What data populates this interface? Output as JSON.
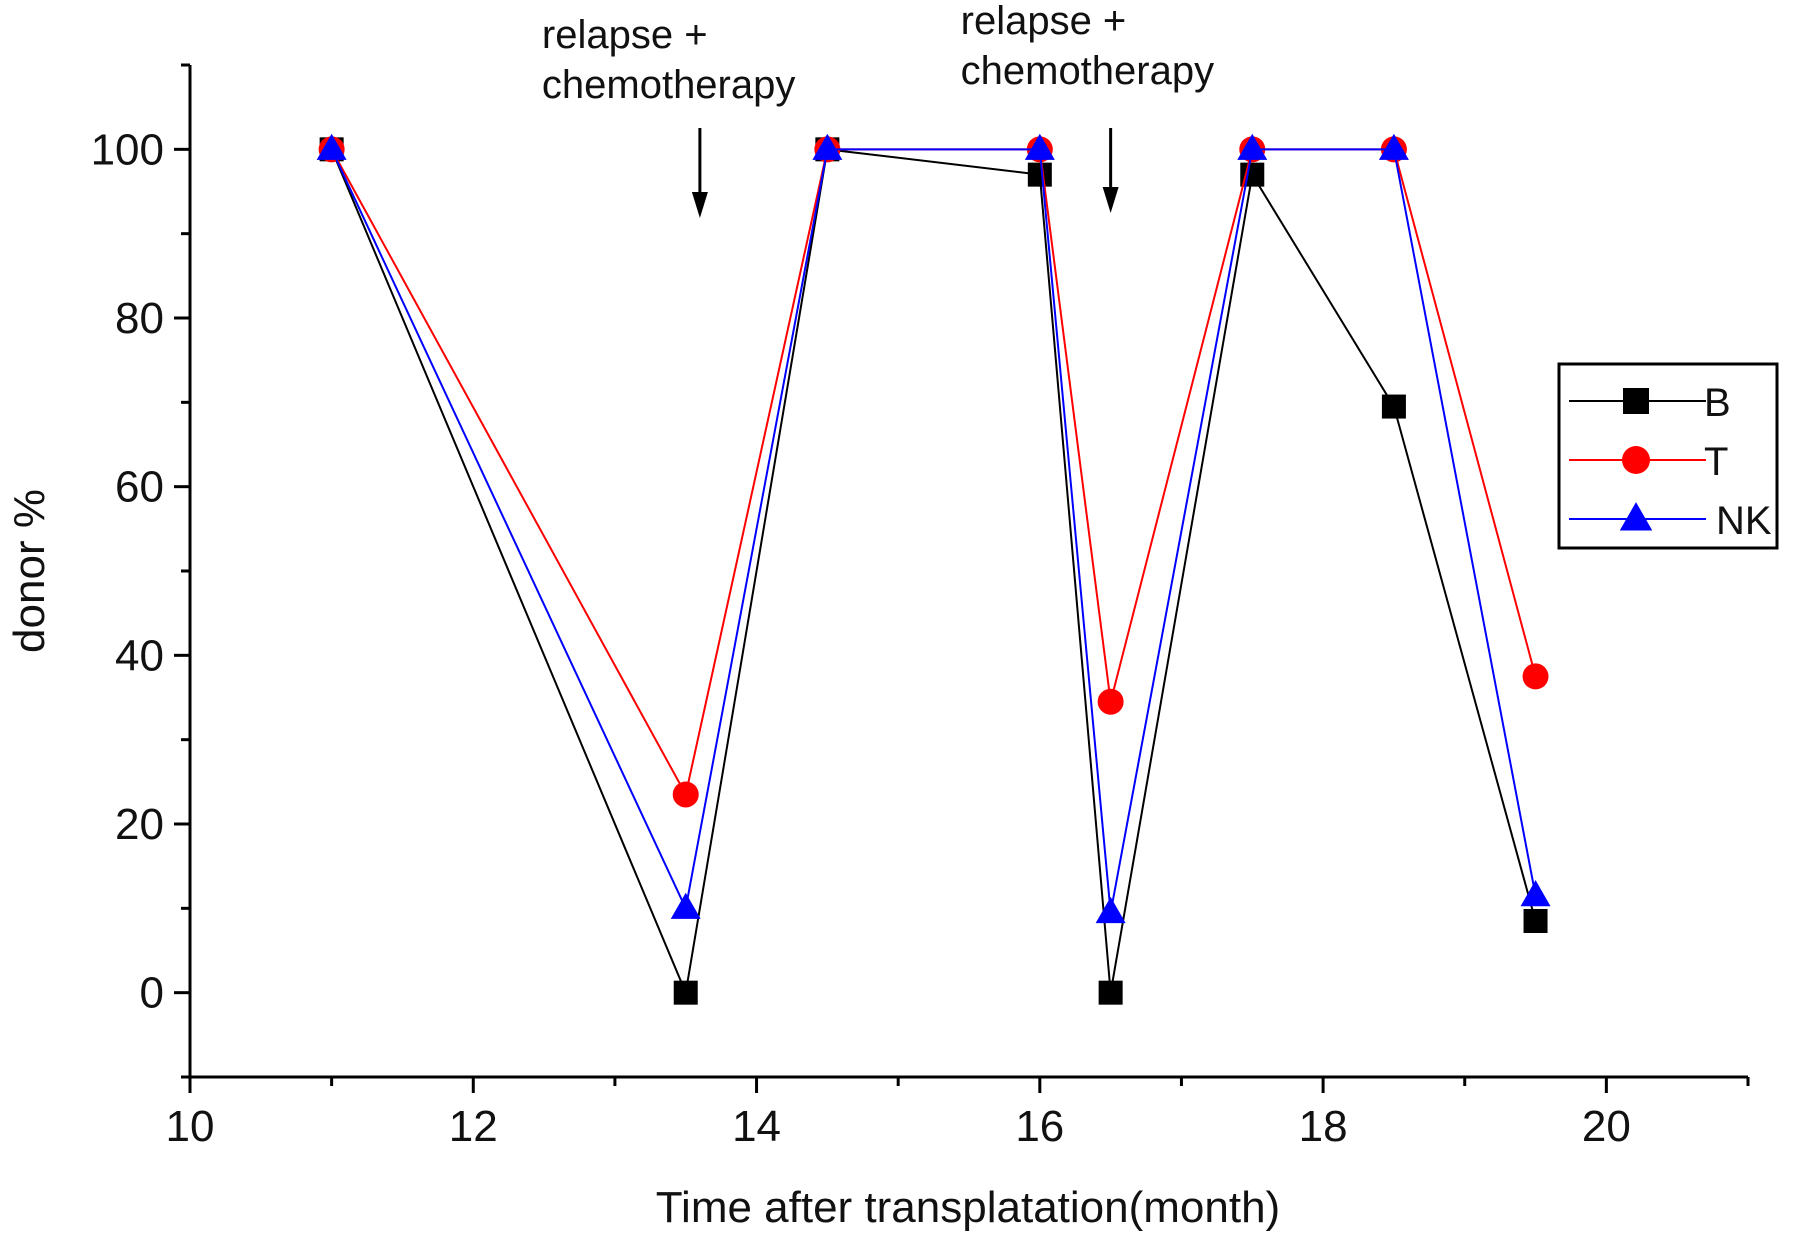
{
  "chart_data": {
    "type": "line",
    "xlabel": "Time after transplatation(month)",
    "ylabel": "donor %",
    "xlim": [
      10,
      21
    ],
    "ylim": [
      -10,
      110
    ],
    "xticks": [
      "10",
      "12",
      "14",
      "16",
      "18",
      "20"
    ],
    "yticks": [
      "0",
      "20",
      "40",
      "60",
      "80",
      "100"
    ],
    "legend_position": "right",
    "grid": false,
    "series": [
      {
        "name": "B",
        "color": "#000000",
        "marker": "square",
        "x": [
          11,
          13.5,
          14.5,
          16,
          16.5,
          17.5,
          18.5,
          19.5
        ],
        "y": [
          100,
          0,
          100,
          97,
          0,
          97,
          69.5,
          8.5
        ]
      },
      {
        "name": "T",
        "color": "#ff0000",
        "marker": "circle",
        "x": [
          11,
          13.5,
          14.5,
          16,
          16.5,
          17.5,
          18.5,
          19.5
        ],
        "y": [
          100,
          23.5,
          100,
          100,
          34.5,
          100,
          100,
          37.5
        ]
      },
      {
        "name": "NK",
        "color": "#0000ff",
        "marker": "triangle",
        "x": [
          11,
          13.5,
          14.5,
          16,
          16.5,
          17.5,
          18.5,
          19.5
        ],
        "y": [
          100,
          10,
          100,
          100,
          9.5,
          100,
          100,
          11.5
        ]
      }
    ],
    "annotations": [
      {
        "lines": [
          "relapse +",
          "chemotherapy"
        ],
        "x": 13.6,
        "arrow": "down"
      },
      {
        "lines": [
          "relapse +",
          "chemotherapy"
        ],
        "x": 16.5,
        "arrow": "down"
      }
    ]
  }
}
